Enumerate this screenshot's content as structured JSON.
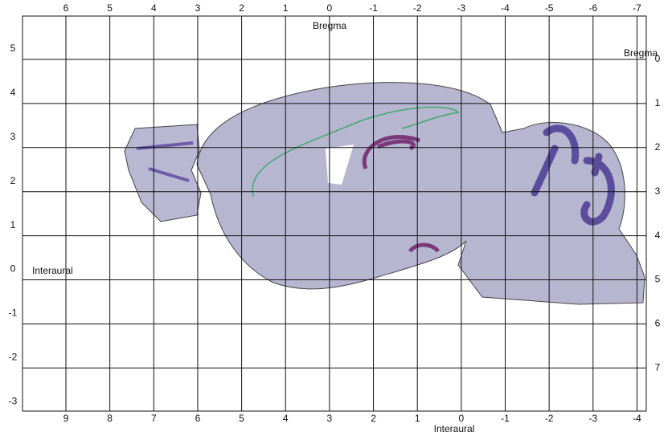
{
  "top_labels": [
    "6",
    "5",
    "4",
    "3",
    "2",
    "1",
    "0",
    "-1",
    "-2",
    "-3",
    "-4",
    "-5",
    "-6",
    "-7"
  ],
  "bottom_labels": [
    "9",
    "8",
    "7",
    "6",
    "5",
    "4",
    "3",
    "2",
    "1",
    "0",
    "-1",
    "-2",
    "-3",
    "-4"
  ],
  "left_labels": [
    "5",
    "4",
    "3",
    "2",
    "1",
    "0",
    "-1",
    "-2",
    "-3"
  ],
  "right_labels": [
    "0",
    "1",
    "2",
    "3",
    "4",
    "5",
    "6",
    "7"
  ],
  "bregma_top": "Bregma",
  "bregma_right": "Bregma",
  "interaural_left": "Interaural",
  "interaural_bottom": "Interaural"
}
